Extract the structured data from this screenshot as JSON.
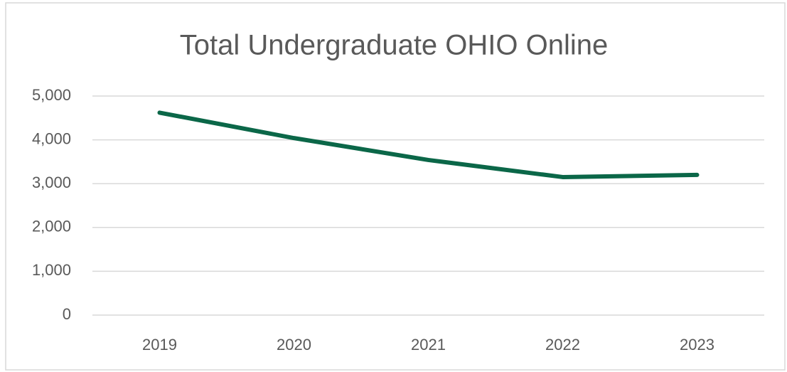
{
  "chart_data": {
    "type": "line",
    "title": "Total Undergraduate OHIO Online",
    "categories": [
      "2019",
      "2020",
      "2021",
      "2022",
      "2023"
    ],
    "series": [
      {
        "name": "Total Undergraduate OHIO Online",
        "color": "#0b6748",
        "values": [
          4620,
          4040,
          3540,
          3150,
          3200
        ]
      }
    ],
    "ylim": [
      0,
      5000
    ],
    "yticks": [
      0,
      {
        "value": 1000,
        "label": "1,000"
      },
      {
        "value": 2000,
        "label": "2,000"
      },
      {
        "value": 3000,
        "label": "3,000"
      },
      {
        "value": 4000,
        "label": "4,000"
      },
      {
        "value": 5000,
        "label": "5,000"
      }
    ],
    "grid": true
  }
}
